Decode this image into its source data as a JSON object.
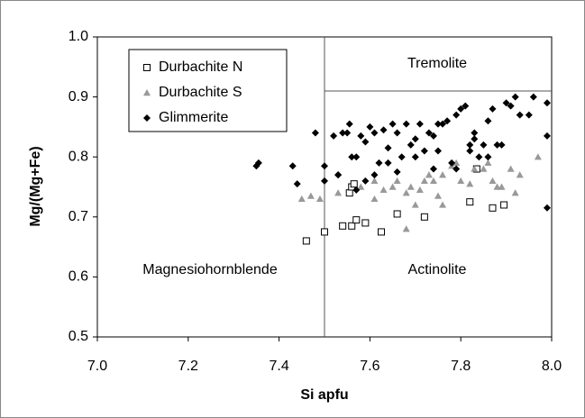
{
  "chart_data": {
    "type": "scatter",
    "xlabel": "Si apfu",
    "ylabel": "Mg/(Mg+Fe)",
    "xlim": [
      7.0,
      8.0
    ],
    "ylim": [
      0.5,
      1.0
    ],
    "xticks": [
      {
        "value": 7.0,
        "label": "7.0"
      },
      7.2,
      7.4,
      7.6,
      7.8,
      {
        "value": 8.0,
        "label": "8.0"
      }
    ],
    "yticks": [
      {
        "value": 0.5,
        "label": "0.5"
      },
      0.6,
      0.7,
      0.8,
      0.9,
      {
        "value": 1.0,
        "label": "1.0"
      }
    ],
    "grid": false,
    "legend": "upper left",
    "boundaries": [
      {
        "x": [
          7.5,
          7.5
        ],
        "y": [
          0.5,
          1.0
        ]
      },
      {
        "x": [
          7.5,
          8.0
        ],
        "y": [
          0.91,
          0.91
        ]
      }
    ],
    "annotations": [
      "Tremolite",
      "Actinolite",
      "Magnesiohornblende"
    ],
    "series": [
      {
        "name": "Durbachite N",
        "marker": "square",
        "color": "#000000",
        "x": [
          7.46,
          7.5,
          7.54,
          7.56,
          7.555,
          7.56,
          7.565,
          7.57,
          7.59,
          7.625,
          7.66,
          7.72,
          7.82,
          7.835,
          7.87,
          7.895
        ],
        "values": [
          0.66,
          0.675,
          0.685,
          0.685,
          0.74,
          0.75,
          0.755,
          0.695,
          0.69,
          0.675,
          0.705,
          0.7,
          0.725,
          0.78,
          0.715,
          0.72
        ]
      },
      {
        "name": "Durbachite S",
        "marker": "triangle",
        "color": "#999999",
        "x": [
          7.45,
          7.47,
          7.49,
          7.53,
          7.58,
          7.61,
          7.63,
          7.65,
          7.66,
          7.68,
          7.69,
          7.71,
          7.72,
          7.74,
          7.75,
          7.76,
          7.78,
          7.79,
          7.8,
          7.82,
          7.83,
          7.85,
          7.86,
          7.87,
          7.89,
          7.91,
          7.92,
          7.93,
          7.97,
          7.68,
          7.61,
          7.7,
          7.88,
          7.76,
          7.73
        ],
        "values": [
          0.73,
          0.735,
          0.73,
          0.74,
          0.75,
          0.76,
          0.745,
          0.75,
          0.76,
          0.74,
          0.75,
          0.745,
          0.76,
          0.76,
          0.735,
          0.77,
          0.785,
          0.79,
          0.76,
          0.755,
          0.78,
          0.78,
          0.79,
          0.76,
          0.75,
          0.78,
          0.74,
          0.77,
          0.8,
          0.68,
          0.73,
          0.72,
          0.75,
          0.72,
          0.77
        ]
      },
      {
        "name": "Glimmerite",
        "marker": "diamond",
        "color": "#000000",
        "x": [
          7.35,
          7.355,
          7.43,
          7.44,
          7.48,
          7.5,
          7.5,
          7.52,
          7.53,
          7.54,
          7.55,
          7.555,
          7.57,
          7.58,
          7.59,
          7.59,
          7.6,
          7.61,
          7.62,
          7.63,
          7.64,
          7.65,
          7.66,
          7.67,
          7.68,
          7.69,
          7.7,
          7.71,
          7.72,
          7.73,
          7.74,
          7.75,
          7.76,
          7.77,
          7.78,
          7.79,
          7.8,
          7.81,
          7.82,
          7.83,
          7.84,
          7.85,
          7.86,
          7.87,
          7.88,
          7.89,
          7.9,
          7.91,
          7.92,
          7.93,
          7.95,
          7.96,
          7.99,
          7.99,
          7.99,
          7.57,
          7.61,
          7.66,
          7.74,
          7.79,
          7.83,
          7.86,
          7.64,
          7.7,
          7.53,
          7.56,
          7.75,
          7.82
        ],
        "values": [
          0.785,
          0.79,
          0.785,
          0.755,
          0.84,
          0.785,
          0.76,
          0.835,
          0.77,
          0.84,
          0.84,
          0.855,
          0.8,
          0.835,
          0.825,
          0.76,
          0.85,
          0.84,
          0.79,
          0.845,
          0.815,
          0.855,
          0.84,
          0.8,
          0.855,
          0.82,
          0.83,
          0.855,
          0.81,
          0.84,
          0.835,
          0.855,
          0.855,
          0.86,
          0.79,
          0.87,
          0.88,
          0.885,
          0.81,
          0.84,
          0.8,
          0.82,
          0.86,
          0.88,
          0.82,
          0.82,
          0.89,
          0.885,
          0.9,
          0.87,
          0.87,
          0.9,
          0.89,
          0.835,
          0.715,
          0.745,
          0.77,
          0.775,
          0.78,
          0.78,
          0.83,
          0.8,
          0.79,
          0.8,
          0.77,
          0.8,
          0.81,
          0.82
        ]
      }
    ]
  }
}
